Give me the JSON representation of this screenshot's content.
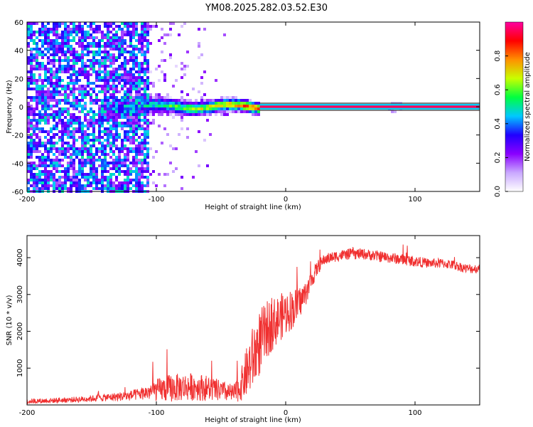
{
  "title": "YM08.2025.282.03.52.E30",
  "chart_data": [
    {
      "type": "heatmap",
      "name": "spectrogram",
      "xlabel": "Height of straight line (km)",
      "ylabel": "Frequency (Hz)",
      "xlim": [
        -200,
        150
      ],
      "ylim": [
        -60,
        60
      ],
      "xticks": [
        -200,
        -100,
        0,
        100
      ],
      "yticks": [
        -60,
        -40,
        -20,
        0,
        20,
        40,
        60
      ],
      "colorbar": {
        "label": "Normalized spectral amplitude",
        "range": [
          0,
          1
        ],
        "ticks": [
          0.0,
          0.2,
          0.4,
          0.6,
          0.8
        ],
        "colormap": [
          "#ffffff",
          "#c9a8ff",
          "#8a00ff",
          "#2000ff",
          "#00c8ff",
          "#00ff40",
          "#c8ff00",
          "#ff9000",
          "#ff0000",
          "#ff00a0"
        ]
      },
      "signal_band": {
        "center_hz": 0,
        "width_hz": 2,
        "from_km": -20,
        "to_km": 150,
        "amplitude": 0.95
      },
      "noise_region": {
        "from_km": -200,
        "to_km": -105,
        "amplitude": 0.35
      }
    },
    {
      "type": "line",
      "name": "snr",
      "xlabel": "Height of straight line (km)",
      "ylabel": "SNR (10 * v/v)",
      "xlim": [
        -200,
        150
      ],
      "ylim": [
        0,
        4600
      ],
      "xticks": [
        -200,
        -100,
        0,
        100
      ],
      "yticks": [
        1000,
        2000,
        3000,
        4000
      ],
      "color": "#f03030",
      "series": [
        {
          "name": "SNR",
          "x": [
            -200,
            -180,
            -160,
            -140,
            -120,
            -110,
            -100,
            -90,
            -80,
            -70,
            -60,
            -50,
            -40,
            -35,
            -30,
            -25,
            -20,
            -15,
            -10,
            -5,
            0,
            5,
            10,
            15,
            20,
            25,
            30,
            40,
            50,
            60,
            70,
            80,
            90,
            100,
            110,
            120,
            130,
            140,
            150
          ],
          "values": [
            100,
            120,
            150,
            200,
            250,
            320,
            400,
            450,
            480,
            500,
            450,
            380,
            300,
            500,
            900,
            1300,
            1700,
            2000,
            2200,
            2350,
            2500,
            2600,
            2750,
            3000,
            3400,
            3750,
            3950,
            4050,
            4100,
            4100,
            4050,
            4000,
            3950,
            3900,
            3850,
            3850,
            3800,
            3700,
            3700
          ],
          "noise_amplitude": [
            70,
            70,
            80,
            100,
            140,
            180,
            300,
            380,
            380,
            380,
            350,
            280,
            250,
            400,
            700,
            900,
            900,
            800,
            700,
            650,
            600,
            550,
            450,
            350,
            250,
            200,
            150,
            150,
            150,
            150,
            150,
            150,
            150,
            150,
            130,
            130,
            130,
            130,
            130
          ]
        }
      ]
    }
  ]
}
